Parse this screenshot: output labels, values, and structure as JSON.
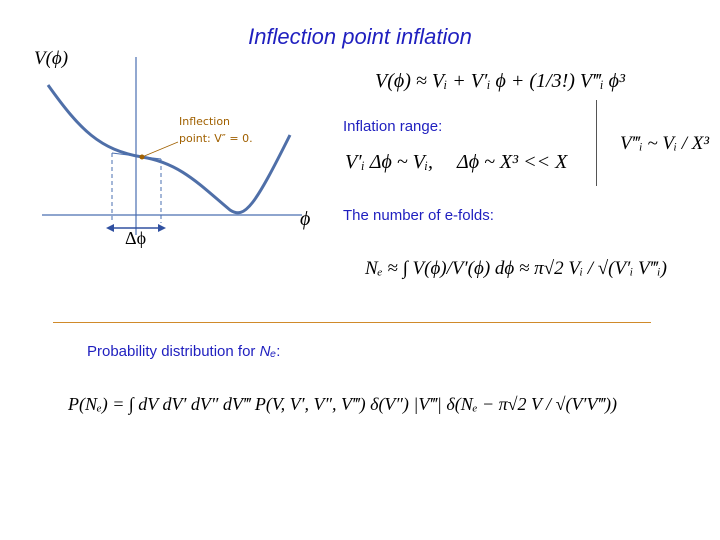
{
  "slide": {
    "title": "Inflection point inflation",
    "plot": {
      "y_axis_label": "V(ϕ)",
      "x_axis_label": "ϕ",
      "delta_label": "Δϕ",
      "inflection_label_line1": "Inflection",
      "inflection_label_line2": "point: V″ = 0."
    },
    "equations": {
      "taylor": "V(ϕ) ≈ Vᵢ + V′ᵢ ϕ + (1/3!) V‴ᵢ ϕ³",
      "inflation_range_label": "Inflation range:",
      "range_eq1": "V′ᵢ Δϕ ~ Vᵢ,",
      "range_eq2": "Δϕ ~ X³ << X",
      "side_eq": "V‴ᵢ ~ Vᵢ / X³",
      "efolds_label": "The number of e-folds:",
      "efolds_eq": "Nₑ ≈ ∫ V(ϕ)/V′(ϕ) dϕ ≈ π√2 Vᵢ / √(V′ᵢ V‴ᵢ)",
      "prob_label_prefix": "Probability distribution for ",
      "prob_label_var": "Nₑ",
      "prob_label_suffix": ":",
      "prob_eq": "P(Nₑ) = ∫ dV dV′ dV″ dV‴ P(V, V′, V″, V‴) δ(V″) |V‴| δ(Nₑ − π√2 V / √(V′V‴))"
    }
  }
}
